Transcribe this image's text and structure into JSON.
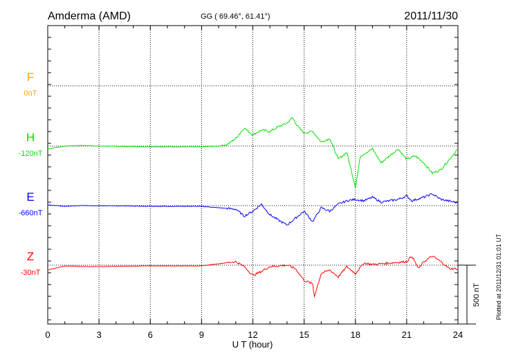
{
  "chart_data": {
    "type": "line",
    "title": "Amderma (AMD)",
    "subtitle": "GG ( 69.46°,  61.41°)",
    "date": "2011/11/30",
    "xlabel": "U T (hour)",
    "xlim": [
      0,
      24
    ],
    "xticks": [
      "0",
      "3",
      "6",
      "9",
      "12",
      "15",
      "18",
      "21",
      "24"
    ],
    "scale_bar_label": "500 nT",
    "scale_bar_nT": 500,
    "footnote": "Plotted at 2011/12/31 01:01 UT",
    "grid": true,
    "series": [
      {
        "name": "F",
        "baseline_label": "0nT",
        "color": "#ffa500",
        "x": [],
        "values": []
      },
      {
        "name": "H",
        "baseline_label": "-120nT",
        "color": "#00e000",
        "x": [
          0,
          1,
          2,
          3,
          6,
          9,
          10,
          10.5,
          11,
          11.5,
          12,
          12.5,
          13,
          13.5,
          14,
          14.3,
          14.7,
          15,
          15.5,
          16,
          16.5,
          17,
          17.5,
          18,
          18.3,
          19,
          19.5,
          20,
          20.5,
          21,
          21.5,
          22,
          22.5,
          23,
          23.5,
          24
        ],
        "values": [
          -24,
          0,
          6,
          0,
          -6,
          -6,
          0,
          12,
          65,
          153,
          94,
          136,
          124,
          165,
          195,
          242,
          153,
          112,
          124,
          35,
          65,
          -112,
          -53,
          -349,
          -83,
          -24,
          -142,
          -83,
          -24,
          -112,
          -83,
          -142,
          -230,
          -200,
          -112,
          -24
        ]
      },
      {
        "name": "E",
        "baseline_label": "-660nT",
        "color": "#0000ff",
        "x": [
          0,
          1,
          2,
          3,
          6,
          9,
          10,
          11,
          11.5,
          12,
          12.5,
          13,
          13.5,
          14,
          14.5,
          15,
          15.5,
          16,
          16.5,
          17,
          17.5,
          18,
          18.5,
          19,
          19.5,
          20,
          20.5,
          21,
          21.3,
          22,
          22.5,
          23,
          24
        ],
        "values": [
          6,
          -6,
          0,
          0,
          -6,
          -6,
          -18,
          -30,
          -89,
          -47,
          12,
          -77,
          -124,
          -165,
          -106,
          -47,
          -136,
          -18,
          -47,
          12,
          41,
          53,
          41,
          71,
          30,
          41,
          53,
          83,
          41,
          71,
          100,
          53,
          24
        ]
      },
      {
        "name": "Z",
        "baseline_label": "-30nT",
        "color": "#ff0000",
        "x": [
          0,
          1,
          2,
          3,
          6,
          9,
          10,
          11,
          11.5,
          12,
          12.5,
          13,
          14,
          14.5,
          15,
          15.5,
          15.6,
          16,
          16.5,
          17,
          17.5,
          18,
          18.5,
          19,
          20,
          21,
          21.3,
          21.7,
          22,
          22.5,
          23,
          23.5,
          24
        ],
        "values": [
          -41,
          -6,
          -12,
          -12,
          -6,
          -6,
          12,
          30,
          -12,
          -89,
          -53,
          -12,
          0,
          -30,
          -130,
          -159,
          -265,
          -71,
          -41,
          -100,
          -12,
          -71,
          18,
          6,
          18,
          30,
          77,
          -30,
          30,
          77,
          30,
          -30,
          -30
        ]
      }
    ]
  }
}
